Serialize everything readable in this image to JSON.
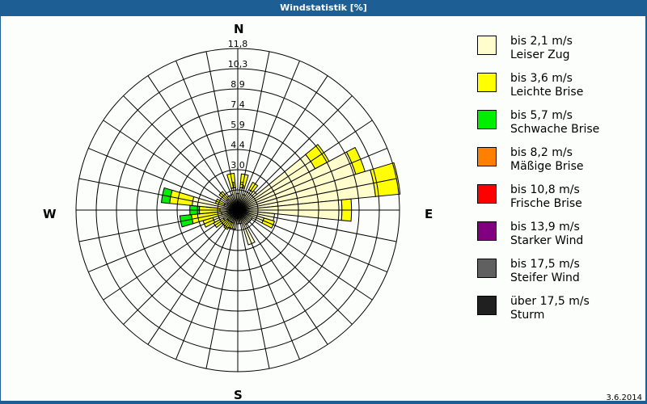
{
  "title": "Windstatistik [%]",
  "date": "3.6.2014",
  "compass": {
    "n": "N",
    "e": "E",
    "s": "S",
    "w": "W"
  },
  "legend": [
    {
      "range": "bis 2,1 m/s",
      "name": "Leiser Zug",
      "color": "#fffdcc"
    },
    {
      "range": "bis 3,6 m/s",
      "name": "Leichte Brise",
      "color": "#ffff00"
    },
    {
      "range": "bis 5,7 m/s",
      "name": "Schwache Brise",
      "color": "#00ee00"
    },
    {
      "range": "bis 8,2 m/s",
      "name": "Mäßige Brise",
      "color": "#ff8000"
    },
    {
      "range": "bis 10,8 m/s",
      "name": "Frische Brise",
      "color": "#ff0000"
    },
    {
      "range": "bis 13,9 m/s",
      "name": "Starker Wind",
      "color": "#800080"
    },
    {
      "range": "bis 17,5 m/s",
      "name": "Steifer Wind",
      "color": "#606060"
    },
    {
      "range": "über 17,5 m/s",
      "name": "Sturm",
      "color": "#202020"
    }
  ],
  "chart_data": {
    "type": "polar-stacked-bar (wind rose)",
    "title": "Windstatistik [%]",
    "sectors": 32,
    "sector_width_deg": 11.25,
    "radial_ticks": [
      "1,5",
      "3,0",
      "4,4",
      "5,9",
      "7,4",
      "8,9",
      "10,3",
      "11,8"
    ],
    "radial_max": 11.8,
    "directions_deg": [
      0,
      11.25,
      22.5,
      33.75,
      45,
      56.25,
      67.5,
      78.75,
      90,
      101.25,
      112.5,
      123.75,
      135,
      146.25,
      157.5,
      168.75,
      180,
      191.25,
      202.5,
      213.75,
      225,
      236.25,
      247.5,
      258.75,
      270,
      281.25,
      292.5,
      303.75,
      315,
      326.25,
      337.5,
      348.75
    ],
    "series": [
      {
        "name": "bis 2,1 m/s Leiser Zug",
        "values": [
          1.2,
          1.65,
          1.2,
          1.7,
          1.8,
          6.4,
          9.0,
          10.1,
          7.6,
          2.7,
          2.0,
          1.2,
          1.2,
          1.2,
          2.65,
          1.0,
          1.0,
          1.4,
          1.0,
          1.0,
          1.0,
          1.2,
          1.9,
          1.2,
          1.3,
          3.35,
          1.05,
          0.9,
          1.05,
          1.2,
          1.2,
          1.65
        ]
      },
      {
        "name": "bis 3,6 m/s Leichte Brise",
        "values": [
          0,
          1.0,
          0,
          0.6,
          0,
          1.15,
          0.7,
          1.8,
          0.7,
          0,
          0.8,
          0,
          0,
          0,
          0,
          0,
          0,
          0,
          0.4,
          0.6,
          0.5,
          0.8,
          0.75,
          2.2,
          1.5,
          1.65,
          0.65,
          0,
          0.7,
          0,
          0,
          1.05
        ]
      },
      {
        "name": "bis 5,7 m/s Schwache Brise",
        "values": [
          0,
          0,
          0,
          0,
          0,
          0,
          0,
          0,
          0,
          0,
          0,
          0,
          0,
          0,
          0,
          0,
          0,
          0,
          0,
          0,
          0,
          0,
          0,
          0.85,
          0.7,
          0.6,
          0,
          0,
          0,
          0,
          0,
          0
        ]
      },
      {
        "name": "bis 8,2 m/s Mäßige Brise",
        "values": [
          0,
          0,
          0,
          0,
          0,
          0,
          0,
          0,
          0,
          0,
          0,
          0,
          0,
          0,
          0,
          0,
          0,
          0,
          0,
          0,
          0,
          0,
          0,
          0,
          0,
          0,
          0,
          0,
          0,
          0,
          0,
          0
        ]
      },
      {
        "name": "bis 10,8 m/s Frische Brise",
        "values": [
          0,
          0,
          0,
          0,
          0,
          0,
          0,
          0,
          0,
          0,
          0,
          0,
          0,
          0,
          0,
          0,
          0,
          0,
          0,
          0,
          0,
          0,
          0,
          0,
          0,
          0,
          0,
          0,
          0,
          0,
          0,
          0
        ]
      },
      {
        "name": "bis 13,9 m/s Starker Wind",
        "values": [
          0,
          0,
          0,
          0,
          0,
          0,
          0,
          0,
          0,
          0,
          0,
          0,
          0,
          0,
          0,
          0,
          0,
          0,
          0,
          0,
          0,
          0,
          0,
          0,
          0,
          0,
          0,
          0,
          0,
          0,
          0,
          0
        ]
      },
      {
        "name": "bis 17,5 m/s Steifer Wind",
        "values": [
          0,
          0,
          0,
          0,
          0,
          0,
          0,
          0,
          0,
          0,
          0,
          0,
          0,
          0,
          0,
          0,
          0,
          0,
          0,
          0,
          0,
          0,
          0,
          0,
          0,
          0,
          0,
          0,
          0,
          0,
          0,
          0
        ]
      },
      {
        "name": "über 17,5 m/s Sturm",
        "values": [
          0,
          0,
          0,
          0,
          0,
          0,
          0,
          0,
          0,
          0,
          0,
          0,
          0,
          0,
          0,
          0,
          0,
          0,
          0,
          0,
          0,
          0,
          0,
          0,
          0,
          0,
          0,
          0,
          0,
          0,
          0,
          0
        ]
      }
    ],
    "legend_position": "right",
    "grid": true
  }
}
